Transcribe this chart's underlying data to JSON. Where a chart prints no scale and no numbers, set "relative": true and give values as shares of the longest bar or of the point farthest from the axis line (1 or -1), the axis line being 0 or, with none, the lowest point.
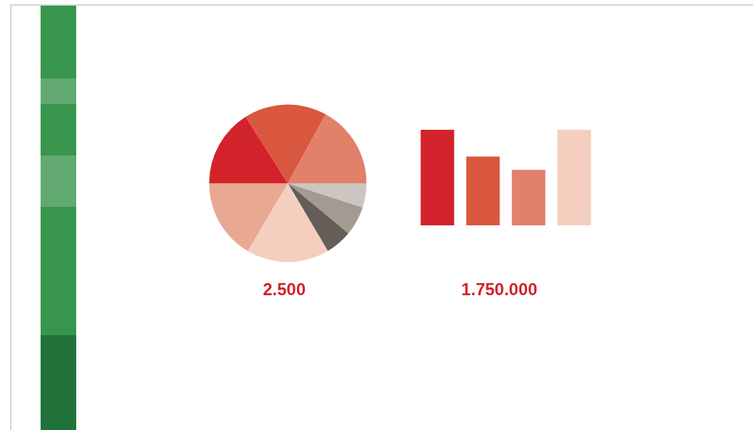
{
  "chart_data": [
    {
      "type": "pie",
      "categories": [
        null,
        null,
        null,
        null,
        null,
        null,
        null,
        null
      ],
      "values": [
        16,
        17,
        17,
        5,
        6,
        5.5,
        17,
        16.5
      ],
      "colors": [
        "#d2232a",
        "#d9573f",
        "#e2806a",
        "#cbc6bf",
        "#a39b92",
        "#655d57",
        "#f4cfc0",
        "#e9a891"
      ],
      "annotations": [
        "2.500"
      ]
    },
    {
      "type": "bar",
      "relative": true,
      "categories": [
        null,
        null,
        null,
        null
      ],
      "values": [
        1,
        0.72,
        0.58,
        1
      ],
      "colors": [
        "#d2232a",
        "#d9573f",
        "#e2806a",
        "#f4cfc0"
      ],
      "annotations": [
        "1.750.000"
      ]
    }
  ]
}
